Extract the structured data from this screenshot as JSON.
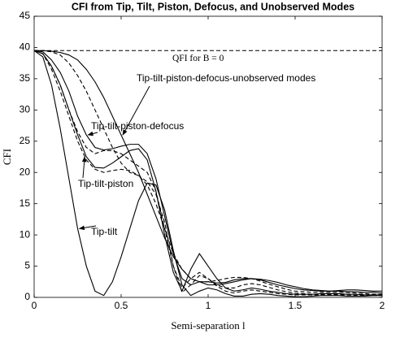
{
  "chart_data": {
    "type": "line",
    "title": "CFI from Tip, Tilt, Piston, Defocus, and Unobserved Modes",
    "x_label": "Semi-separation l",
    "y_label": "CFI",
    "x": [
      0,
      0.05,
      0.1,
      0.15,
      0.2,
      0.25,
      0.3,
      0.35,
      0.4,
      0.45,
      0.5,
      0.55,
      0.6,
      0.65,
      0.7,
      0.75,
      0.8,
      0.85,
      0.9,
      0.95,
      1,
      1.05,
      1.1,
      1.15,
      1.2,
      1.25,
      1.3,
      1.35,
      1.4,
      1.45,
      1.5,
      1.55,
      1.6,
      1.65,
      1.7,
      1.75,
      1.8,
      1.85,
      1.9,
      1.95,
      2
    ],
    "xlim": [
      0,
      2
    ],
    "xticks": [
      0,
      0.5,
      1,
      1.5,
      2
    ],
    "ylim": [
      0,
      45
    ],
    "yticks": [
      0,
      5,
      10,
      15,
      20,
      25,
      30,
      35,
      40,
      45
    ],
    "series": [
      {
        "name": "Tip-tilt",
        "color": "#000000",
        "style": "solid",
        "values": [
          39.5,
          38.5,
          34,
          27,
          19,
          11,
          5,
          1,
          0.3,
          2.5,
          6.5,
          11,
          15.5,
          18.3,
          18,
          14,
          7.5,
          2,
          0.3,
          1,
          1.5,
          1.2,
          0.6,
          0.2,
          0.2,
          0.5,
          0.6,
          0.5,
          0.3,
          0.2,
          0.1,
          0.1,
          0.2,
          0.3,
          0.3,
          0.3,
          0.2,
          0.2,
          0.2,
          0.3,
          0.3
        ]
      },
      {
        "name": "Tip-tilt-piston",
        "color": "#000000",
        "style": "solid",
        "values": [
          39.5,
          39,
          37,
          34,
          30,
          26,
          22.5,
          20.8,
          20.7,
          21.5,
          22.5,
          23.5,
          23.8,
          22,
          17,
          10,
          4,
          1,
          4.5,
          7,
          5,
          3,
          1.5,
          1,
          1.2,
          1.5,
          1.3,
          1,
          0.8,
          0.6,
          0.5,
          0.5,
          0.5,
          0.6,
          0.6,
          0.6,
          0.5,
          0.5,
          0.4,
          0.4,
          0.4
        ]
      },
      {
        "name": "Tip-tilt-piston-defocus",
        "color": "#000000",
        "style": "solid",
        "values": [
          39.5,
          39.3,
          38,
          36,
          33,
          29,
          26,
          24,
          23.6,
          23.8,
          24.2,
          24.5,
          24.5,
          23,
          19,
          13,
          7,
          3,
          2,
          2.5,
          2.5,
          2.3,
          2.4,
          2.8,
          3,
          3,
          2.8,
          2.4,
          2,
          1.7,
          1.4,
          1.2,
          1.1,
          1,
          1,
          1,
          0.9,
          0.9,
          0.8,
          0.8,
          0.7
        ]
      },
      {
        "name": "Tip-tilt-piston-defocus-unobserved modes",
        "color": "#000000",
        "style": "solid",
        "values": [
          39.5,
          39.5,
          39.4,
          39.2,
          38.8,
          38,
          36.5,
          34.5,
          32,
          29,
          26,
          23,
          20,
          16.5,
          13,
          9.5,
          6.5,
          4.5,
          3,
          2.5,
          2,
          2,
          2.2,
          2.5,
          2.8,
          3,
          2.9,
          2.7,
          2.4,
          2,
          1.7,
          1.4,
          1.2,
          1.1,
          1,
          1.1,
          1.2,
          1.2,
          1.1,
          1,
          1
        ]
      },
      {
        "color": "#000000",
        "style": "dashed",
        "values": [
          39.5,
          39.5,
          39.3,
          38.8,
          37.5,
          35.5,
          33,
          30,
          27,
          24,
          21.5,
          20,
          19.5,
          18,
          15,
          11,
          7,
          4.5,
          3,
          2.5,
          2.5,
          2.7,
          3,
          3.2,
          3.2,
          3,
          2.6,
          2.1,
          1.7,
          1.3,
          1,
          0.9,
          0.8,
          0.8,
          0.8,
          0.8,
          0.8,
          0.7,
          0.6,
          0.5,
          0.5
        ]
      },
      {
        "color": "#000000",
        "style": "dashed",
        "values": [
          39.5,
          39,
          37,
          34,
          30,
          26.5,
          24,
          23,
          23.5,
          23.5,
          23,
          22,
          21,
          20,
          17,
          11,
          5,
          1.5,
          3,
          4,
          3,
          2,
          1.5,
          1.5,
          2,
          2.2,
          2,
          1.6,
          1.2,
          0.9,
          0.7,
          0.6,
          0.5,
          0.5,
          0.5,
          0.5,
          0.5,
          0.5,
          0.4,
          0.4,
          0.4
        ]
      },
      {
        "color": "#000000",
        "style": "dashed",
        "values": [
          39.5,
          39,
          36.5,
          33,
          29,
          25,
          22,
          20.5,
          20,
          20.3,
          20.5,
          20.3,
          19.5,
          18.5,
          16.5,
          12,
          5,
          0.8,
          2,
          3.5,
          3,
          1.8,
          1,
          0.7,
          1,
          1.2,
          1,
          0.8,
          0.6,
          0.5,
          0.4,
          0.4,
          0.4,
          0.4,
          0.4,
          0.4,
          0.4,
          0.3,
          0.3,
          0.3,
          0.3
        ]
      }
    ],
    "reference_line": {
      "label": "QFI for B = 0",
      "value": 39.5,
      "style": "dashed"
    }
  }
}
